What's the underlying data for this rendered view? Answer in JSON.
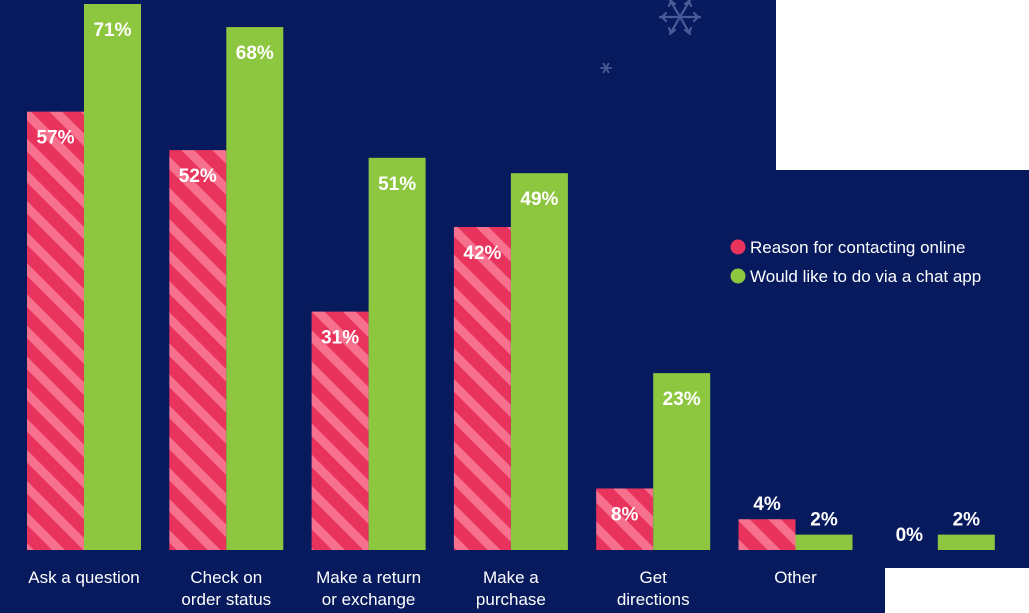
{
  "chart_data": {
    "type": "bar",
    "title": "",
    "xlabel": "",
    "ylabel": "",
    "ylim": [
      0,
      71
    ],
    "grid": false,
    "legend_position": "right",
    "categories": [
      [
        "Ask a question"
      ],
      [
        "Check on",
        "order status"
      ],
      [
        "Make a return",
        "or exchange"
      ],
      [
        "Make a",
        "purchase"
      ],
      [
        "Get",
        "directions"
      ],
      [
        "Other"
      ],
      [
        ""
      ]
    ],
    "series": [
      {
        "name": "Reason for contacting online",
        "color": "#e8345d",
        "stripe_color": "#f7708e",
        "values": [
          57,
          52,
          31,
          42,
          8,
          4,
          0
        ],
        "labels": [
          "57%",
          "52%",
          "31%",
          "42%",
          "8%",
          "4%",
          "0%"
        ]
      },
      {
        "name": "Would like to do via a chat app",
        "color": "#8dc63f",
        "values": [
          71,
          68,
          51,
          49,
          23,
          2,
          2
        ],
        "labels": [
          "71%",
          "68%",
          "51%",
          "49%",
          "23%",
          "2%",
          "2%"
        ]
      }
    ]
  },
  "colors": {
    "background": "#071a5e",
    "white_panel": "#ffffff",
    "snowflake": "#4a5a96"
  }
}
